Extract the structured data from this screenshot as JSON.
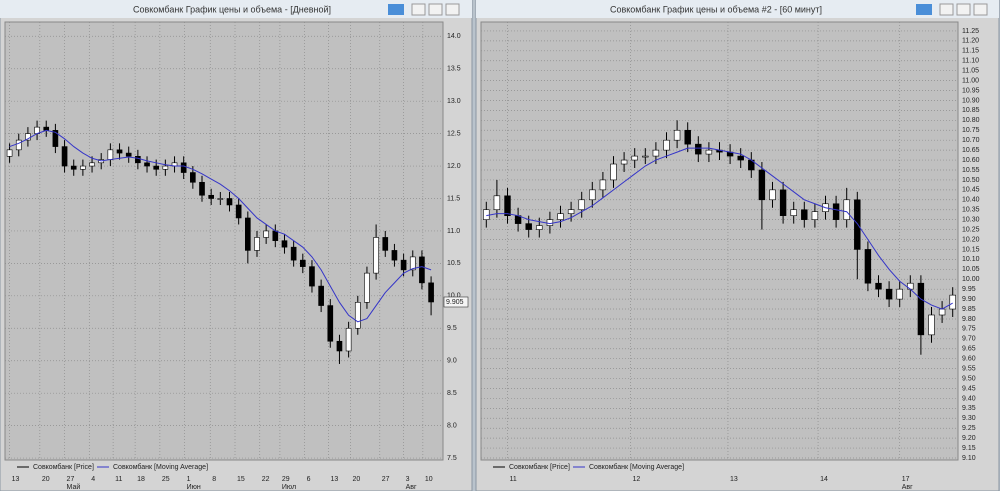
{
  "chart_data": [
    {
      "type": "candlestick",
      "title": "Совкомбанк График цены и объема - [Дневной]",
      "x": [
        0,
        1,
        2,
        3,
        4,
        5,
        6,
        7,
        8,
        9,
        10,
        11,
        12,
        13,
        14,
        15,
        16,
        17,
        18,
        19,
        20,
        21,
        22,
        23,
        24,
        25,
        26,
        27,
        28,
        29,
        30,
        31,
        32,
        33,
        34,
        35,
        36,
        37,
        38,
        39,
        40,
        41,
        42,
        43,
        44,
        45,
        46
      ],
      "series": [
        {
          "name": "Совкомбанк [Price]",
          "color": "#000000",
          "open": [
            12.15,
            12.25,
            12.4,
            12.5,
            12.6,
            12.55,
            12.3,
            12.0,
            11.95,
            12.0,
            12.05,
            12.1,
            12.25,
            12.2,
            12.15,
            12.05,
            12.0,
            11.95,
            12.0,
            12.05,
            11.9,
            11.75,
            11.55,
            11.5,
            11.5,
            11.4,
            11.2,
            10.7,
            10.9,
            11.0,
            10.85,
            10.75,
            10.55,
            10.45,
            10.15,
            9.85,
            9.3,
            9.15,
            9.5,
            9.9,
            10.35,
            10.9,
            10.7,
            10.55,
            10.4,
            10.6,
            10.2
          ],
          "high": [
            12.35,
            12.5,
            12.6,
            12.7,
            12.7,
            12.65,
            12.4,
            12.1,
            12.1,
            12.15,
            12.2,
            12.35,
            12.35,
            12.3,
            12.25,
            12.15,
            12.1,
            12.1,
            12.15,
            12.15,
            12.0,
            11.85,
            11.65,
            11.6,
            11.6,
            11.5,
            11.3,
            11.0,
            11.1,
            11.1,
            10.95,
            10.85,
            10.65,
            10.55,
            10.25,
            9.95,
            9.4,
            9.6,
            10.0,
            10.45,
            11.1,
            11.0,
            10.8,
            10.65,
            10.7,
            10.7,
            10.3
          ],
          "low": [
            12.05,
            12.15,
            12.3,
            12.4,
            12.45,
            12.2,
            11.9,
            11.85,
            11.85,
            11.9,
            11.95,
            12.0,
            12.1,
            12.05,
            11.95,
            11.9,
            11.85,
            11.85,
            11.9,
            11.8,
            11.65,
            11.45,
            11.4,
            11.4,
            11.3,
            11.1,
            10.5,
            10.6,
            10.8,
            10.75,
            10.65,
            10.45,
            10.35,
            10.05,
            9.75,
            9.2,
            8.95,
            9.05,
            9.4,
            9.8,
            10.25,
            10.6,
            10.45,
            10.3,
            10.3,
            10.1,
            9.7
          ],
          "close": [
            12.25,
            12.4,
            12.5,
            12.6,
            12.55,
            12.3,
            12.0,
            11.95,
            12.0,
            12.05,
            12.1,
            12.25,
            12.2,
            12.15,
            12.05,
            12.0,
            11.95,
            12.0,
            12.05,
            11.9,
            11.75,
            11.55,
            11.5,
            11.5,
            11.4,
            11.2,
            10.7,
            10.9,
            11.0,
            10.85,
            10.75,
            10.55,
            10.45,
            10.15,
            9.85,
            9.3,
            9.15,
            9.5,
            9.9,
            10.35,
            10.9,
            10.7,
            10.55,
            10.4,
            10.6,
            10.2,
            9.905
          ]
        },
        {
          "name": "Совкомбанк [Moving Average]",
          "color": "#3535c8",
          "values": [
            12.3,
            12.35,
            12.42,
            12.5,
            12.55,
            12.52,
            12.42,
            12.3,
            12.2,
            12.12,
            12.08,
            12.1,
            12.12,
            12.14,
            12.12,
            12.08,
            12.05,
            12.02,
            12.0,
            12.0,
            11.95,
            11.88,
            11.8,
            11.72,
            11.62,
            11.5,
            11.35,
            11.2,
            11.1,
            11.0,
            10.95,
            10.85,
            10.75,
            10.6,
            10.4,
            10.15,
            9.9,
            9.7,
            9.6,
            9.65,
            9.85,
            10.05,
            10.2,
            10.35,
            10.42,
            10.45,
            10.4
          ]
        }
      ],
      "last_price": {
        "value": 9.905,
        "label": "9.905"
      },
      "xlim": [
        -0.5,
        47.3
      ],
      "ylim": [
        7.47,
        14.22
      ],
      "yticks": [
        {
          "value": 14,
          "label": "14.0"
        },
        {
          "value": 13.5,
          "label": "13.5"
        },
        {
          "value": 13,
          "label": "13.0"
        },
        {
          "value": 12.5,
          "label": "12.5"
        },
        {
          "value": 12,
          "label": "12.0"
        },
        {
          "value": 11.5,
          "label": "11.5"
        },
        {
          "value": 11,
          "label": "11.0"
        },
        {
          "value": 10.5,
          "label": "10.5"
        },
        {
          "value": 10,
          "label": "10.0"
        },
        {
          "value": 9.5,
          "label": "9.5"
        },
        {
          "value": 9,
          "label": "9.0"
        },
        {
          "value": 8.5,
          "label": "8.5"
        },
        {
          "value": 8,
          "label": "8.0"
        },
        {
          "value": 7.5,
          "label": "7.5"
        }
      ],
      "xticks": [
        {
          "value": 0,
          "label": "13"
        },
        {
          "value": 3.3,
          "label": "20"
        },
        {
          "value": 6,
          "label": "27"
        },
        {
          "value": 8.7,
          "label": "4"
        },
        {
          "value": 11.3,
          "label": "11"
        },
        {
          "value": 13.7,
          "label": "18"
        },
        {
          "value": 16.4,
          "label": "25"
        },
        {
          "value": 19.1,
          "label": "1"
        },
        {
          "value": 21.9,
          "label": "8"
        },
        {
          "value": 24.6,
          "label": "15"
        },
        {
          "value": 27.3,
          "label": "22"
        },
        {
          "value": 29.5,
          "label": "29"
        },
        {
          "value": 32.2,
          "label": "6"
        },
        {
          "value": 34.8,
          "label": "13"
        },
        {
          "value": 37.2,
          "label": "20"
        },
        {
          "value": 40.4,
          "label": "27"
        },
        {
          "value": 43,
          "label": "3"
        },
        {
          "value": 45.1,
          "label": "10"
        }
      ],
      "months": [
        {
          "value": 6,
          "label": "Май"
        },
        {
          "value": 19.1,
          "label": "Июн"
        },
        {
          "value": 29.5,
          "label": "Июл"
        },
        {
          "value": 43,
          "label": "Авг"
        }
      ],
      "grid": true
    },
    {
      "type": "candlestick",
      "title": "Совкомбанк График цены и объема #2 - [60 минут]",
      "x": [
        0,
        1,
        2,
        3,
        4,
        5,
        6,
        7,
        8,
        9,
        10,
        11,
        12,
        13,
        14,
        15,
        16,
        17,
        18,
        19,
        20,
        21,
        22,
        23,
        24,
        25,
        26,
        27,
        28,
        29,
        30,
        31,
        32,
        33,
        34,
        35,
        36,
        37,
        38,
        39,
        40,
        41,
        42,
        43,
        44
      ],
      "series": [
        {
          "name": "Совкомбанк [Price]",
          "color": "#000000",
          "open": [
            10.3,
            10.35,
            10.42,
            10.32,
            10.28,
            10.25,
            10.27,
            10.3,
            10.33,
            10.35,
            10.4,
            10.45,
            10.5,
            10.58,
            10.6,
            10.62,
            10.62,
            10.65,
            10.7,
            10.75,
            10.68,
            10.63,
            10.65,
            10.64,
            10.62,
            10.6,
            10.55,
            10.4,
            10.45,
            10.32,
            10.35,
            10.3,
            10.34,
            10.38,
            10.3,
            10.4,
            10.15,
            9.98,
            9.95,
            9.9,
            9.95,
            9.98,
            9.72,
            9.82,
            9.85
          ],
          "high": [
            10.39,
            10.5,
            10.46,
            10.36,
            10.32,
            10.31,
            10.34,
            10.37,
            10.39,
            10.44,
            10.49,
            10.54,
            10.62,
            10.64,
            10.66,
            10.66,
            10.69,
            10.74,
            10.8,
            10.79,
            10.72,
            10.69,
            10.69,
            10.68,
            10.66,
            10.64,
            10.59,
            10.49,
            10.49,
            10.39,
            10.39,
            10.38,
            10.42,
            10.42,
            10.46,
            10.44,
            10.19,
            10.02,
            9.99,
            9.99,
            10.02,
            10.02,
            9.86,
            9.89,
            9.96
          ],
          "low": [
            10.26,
            10.31,
            10.28,
            10.24,
            10.21,
            10.21,
            10.23,
            10.26,
            10.29,
            10.31,
            10.36,
            10.41,
            10.46,
            10.54,
            10.56,
            10.58,
            10.58,
            10.61,
            10.66,
            10.64,
            10.59,
            10.59,
            10.6,
            10.58,
            10.56,
            10.51,
            10.25,
            10.36,
            10.28,
            10.28,
            10.26,
            10.26,
            10.3,
            10.26,
            10.26,
            10.0,
            9.94,
            9.91,
            9.86,
            9.86,
            9.91,
            9.62,
            9.68,
            9.78,
            9.81
          ],
          "close": [
            10.35,
            10.42,
            10.32,
            10.28,
            10.25,
            10.27,
            10.3,
            10.33,
            10.35,
            10.4,
            10.45,
            10.5,
            10.58,
            10.6,
            10.62,
            10.62,
            10.65,
            10.7,
            10.75,
            10.68,
            10.63,
            10.65,
            10.64,
            10.62,
            10.6,
            10.55,
            10.4,
            10.45,
            10.32,
            10.35,
            10.3,
            10.34,
            10.38,
            10.3,
            10.4,
            10.15,
            9.98,
            9.95,
            9.9,
            9.95,
            9.98,
            9.72,
            9.82,
            9.85,
            9.92
          ]
        },
        {
          "name": "Совкомбанк [Moving Average]",
          "color": "#3535c8",
          "values": [
            10.32,
            10.33,
            10.33,
            10.32,
            10.3,
            10.29,
            10.28,
            10.29,
            10.31,
            10.34,
            10.37,
            10.41,
            10.45,
            10.49,
            10.53,
            10.57,
            10.6,
            10.62,
            10.64,
            10.66,
            10.66,
            10.66,
            10.65,
            10.64,
            10.63,
            10.6,
            10.56,
            10.52,
            10.48,
            10.44,
            10.4,
            10.38,
            10.36,
            10.35,
            10.34,
            10.28,
            10.2,
            10.12,
            10.05,
            9.99,
            9.95,
            9.9,
            9.87,
            9.85,
            9.88
          ]
        }
      ],
      "xlim": [
        -0.5,
        44.5
      ],
      "ylim": [
        9.09,
        11.295
      ],
      "yticks": [
        11.25,
        {
          "value": 11.2,
          "label": "11.20"
        },
        11.15,
        {
          "value": 11.1,
          "label": "11.10"
        },
        11.05,
        {
          "value": 11,
          "label": "11.00"
        },
        10.95,
        {
          "value": 10.9,
          "label": "10.90"
        },
        10.85,
        {
          "value": 10.8,
          "label": "10.80"
        },
        10.75,
        {
          "value": 10.7,
          "label": "10.70"
        },
        10.65,
        {
          "value": 10.6,
          "label": "10.60"
        },
        10.55,
        {
          "value": 10.5,
          "label": "10.50"
        },
        10.45,
        {
          "value": 10.4,
          "label": "10.40"
        },
        10.35,
        {
          "value": 10.3,
          "label": "10.30"
        },
        10.25,
        {
          "value": 10.2,
          "label": "10.20"
        },
        10.15,
        {
          "value": 10.1,
          "label": "10.10"
        },
        10.05,
        {
          "value": 10,
          "label": "10.00"
        },
        9.95,
        {
          "value": 9.9,
          "label": "9.90"
        },
        9.85,
        {
          "value": 9.8,
          "label": "9.80"
        },
        9.75,
        {
          "value": 9.7,
          "label": "9.70"
        },
        9.65,
        {
          "value": 9.6,
          "label": "9.60"
        },
        9.55,
        {
          "value": 9.5,
          "label": "9.50"
        },
        9.45,
        {
          "value": 9.4,
          "label": "9.40"
        },
        9.35,
        {
          "value": 9.3,
          "label": "9.30"
        },
        9.25,
        {
          "value": 9.2,
          "label": "9.20"
        },
        9.15,
        {
          "value": 9.1,
          "label": "9.10"
        }
      ],
      "xticks": [
        {
          "value": 2,
          "label": "11"
        },
        {
          "value": 13.6,
          "label": "12"
        },
        {
          "value": 22.8,
          "label": "13"
        },
        {
          "value": 31.3,
          "label": "14"
        },
        {
          "value": 39,
          "label": "17"
        }
      ],
      "months": [
        {
          "value": 39,
          "label": "Авг"
        }
      ],
      "grid": true
    }
  ]
}
